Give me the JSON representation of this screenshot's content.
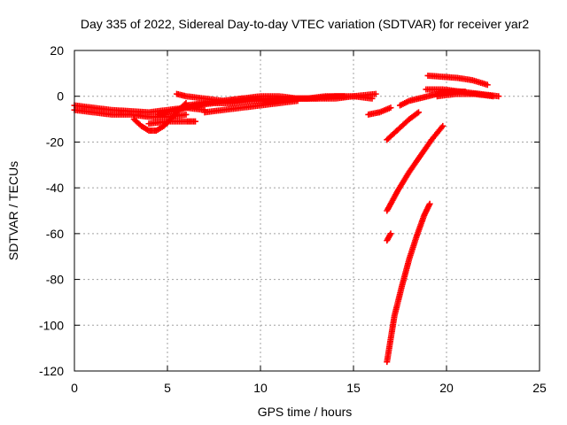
{
  "chart_data": {
    "type": "scatter",
    "title": "Day 335 of 2022, Sidereal Day-to-day VTEC variation (SDTVAR) for receiver yar2",
    "xlabel": "GPS time / hours",
    "ylabel": "SDTVAR / TECUs",
    "xlim": [
      0,
      25
    ],
    "ylim": [
      -120,
      20
    ],
    "xticks": [
      0,
      5,
      10,
      15,
      20,
      25
    ],
    "yticks": [
      -120,
      -100,
      -80,
      -60,
      -40,
      -20,
      0,
      20
    ],
    "xtick_labels": [
      "0",
      "5",
      "10",
      "15",
      "20",
      "25"
    ],
    "ytick_labels": [
      "-120",
      "-100",
      "-80",
      "-60",
      "-40",
      "-20",
      "0",
      "20"
    ],
    "grid": true,
    "legend": "none",
    "marker": "plus",
    "color": "#ff0000",
    "tracks": [
      {
        "x": [
          0,
          1,
          2,
          3,
          4,
          5,
          6,
          7
        ],
        "y": [
          -4,
          -5,
          -6,
          -6.5,
          -7,
          -6,
          -5,
          -6
        ]
      },
      {
        "x": [
          0,
          1,
          2,
          3,
          4,
          5,
          6
        ],
        "y": [
          -6,
          -7,
          -8,
          -8,
          -9,
          -9,
          -8
        ]
      },
      {
        "x": [
          3.2,
          3.6,
          4,
          4.4,
          4.8,
          5.2,
          5.6,
          6
        ],
        "y": [
          -10,
          -13,
          -15,
          -15,
          -13,
          -10,
          -6,
          -3
        ]
      },
      {
        "x": [
          4,
          5,
          6,
          6.5
        ],
        "y": [
          -12,
          -11,
          -11,
          -11
        ]
      },
      {
        "x": [
          5.5,
          6,
          7,
          8,
          9,
          10,
          11,
          12,
          13,
          14,
          15,
          16.2
        ],
        "y": [
          1,
          0,
          -1,
          -2,
          -1,
          -1,
          -2,
          -1,
          -1,
          -1,
          0,
          1
        ]
      },
      {
        "x": [
          4.5,
          5.5,
          6.5,
          7.5,
          8.5,
          9.5,
          10.5,
          11.5,
          12.5,
          13.5,
          14.5
        ],
        "y": [
          -8,
          -6,
          -4,
          -3,
          -3,
          -2,
          -2,
          -1,
          -1,
          0,
          0
        ]
      },
      {
        "x": [
          6,
          7,
          8,
          9,
          10,
          11,
          12,
          13,
          14,
          15,
          16
        ],
        "y": [
          -4,
          -3,
          -2,
          -1,
          0,
          0,
          -1,
          -1,
          0,
          0,
          -1
        ]
      },
      {
        "x": [
          7,
          8,
          9,
          10,
          11,
          12
        ],
        "y": [
          -7,
          -6,
          -5,
          -4,
          -3,
          -2
        ]
      },
      {
        "x": [
          15.8,
          16.4,
          17
        ],
        "y": [
          -8,
          -7,
          -5
        ]
      },
      {
        "x": [
          16.8,
          17.2,
          17.6,
          18,
          18.5
        ],
        "y": [
          -19,
          -16,
          -13,
          -10,
          -7
        ]
      },
      {
        "x": [
          17.5,
          18,
          18.5,
          19,
          19.5,
          20,
          21
        ],
        "y": [
          -4,
          -2,
          -1,
          0,
          1,
          2,
          2
        ]
      },
      {
        "x": [
          16.8,
          17.4,
          18,
          18.6,
          19.2,
          19.8
        ],
        "y": [
          -50,
          -41,
          -33,
          -26,
          -19,
          -13
        ]
      },
      {
        "x": [
          16.8,
          17
        ],
        "y": [
          -63,
          -60
        ]
      },
      {
        "x": [
          16.8,
          17.2,
          17.6,
          18,
          18.4,
          18.8,
          19.1
        ],
        "y": [
          -116,
          -96,
          -83,
          -71,
          -61,
          -52,
          -47
        ]
      },
      {
        "x": [
          19,
          19.8,
          20.6,
          21.4,
          22.2
        ],
        "y": [
          9,
          8.5,
          8,
          7,
          5
        ]
      },
      {
        "x": [
          18.9,
          19.8,
          20.8,
          21.8,
          22.8
        ],
        "y": [
          3,
          3,
          2,
          1,
          0
        ]
      },
      {
        "x": [
          19.5,
          20.5,
          21.5,
          22.5
        ],
        "y": [
          0,
          1,
          1,
          0
        ]
      }
    ]
  }
}
